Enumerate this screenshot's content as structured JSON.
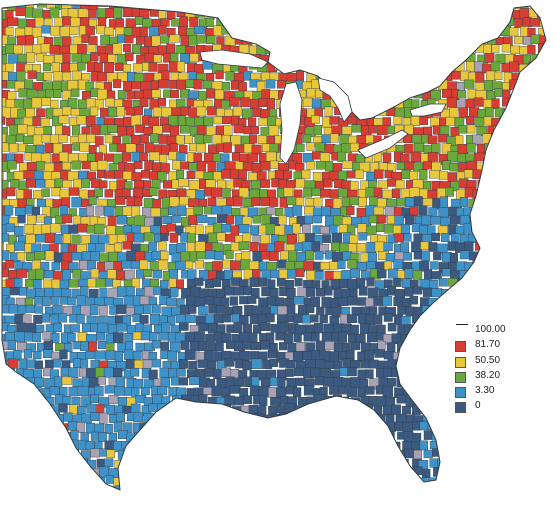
{
  "map": {
    "colors": {
      "red": "#d63d33",
      "yellow": "#e9c73d",
      "green": "#6aa83c",
      "light_blue": "#3f92c8",
      "dark_blue": "#3c5a80",
      "gray": "#a9a2b4",
      "county_line": "#2f3a44",
      "lake": "#ffffff",
      "background": "#ffffff"
    },
    "legend": {
      "top_value": "100.00",
      "entries": [
        {
          "label": "81.70",
          "color": "#d63d33"
        },
        {
          "label": "50.50",
          "color": "#e9c73d"
        },
        {
          "label": "38.20",
          "color": "#6aa83c"
        },
        {
          "label": "3.30",
          "color": "#3f92c8"
        },
        {
          "label": "0",
          "color": "#3c5a80"
        }
      ]
    }
  }
}
